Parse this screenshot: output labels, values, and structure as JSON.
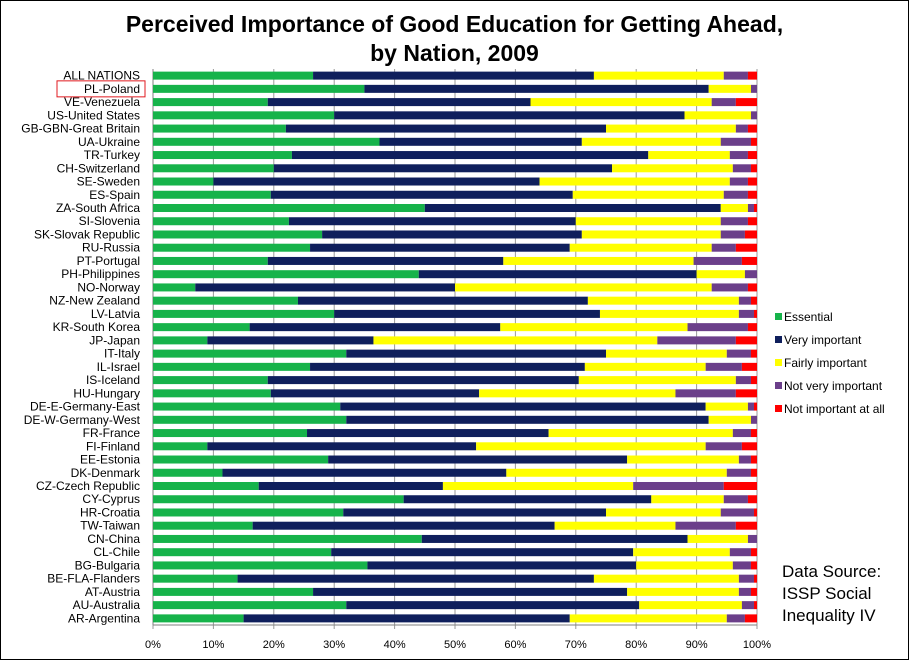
{
  "chart_data": {
    "type": "bar",
    "orientation": "horizontal",
    "stacked": "percent",
    "title": "Perceived Importance of Good Education for Getting Ahead,",
    "title_line2": "by Nation, 2009",
    "source_lines": [
      "Data Source:",
      "ISSP Social",
      "Inequality IV"
    ],
    "x_ticks": [
      "0%",
      "10%",
      "20%",
      "30%",
      "40%",
      "50%",
      "60%",
      "70%",
      "80%",
      "90%",
      "100%"
    ],
    "xlim": [
      0,
      100
    ],
    "legend_position": "right",
    "highlighted_category": "PL-Poland",
    "colors": [
      "#16b34a",
      "#0f1f5c",
      "#ffff00",
      "#6b3f8a",
      "#ff0000"
    ],
    "series_names": [
      "Essential",
      "Very important",
      "Fairly important",
      "Not very important",
      "Not important at all"
    ],
    "categories": [
      "ALL NATIONS",
      "PL-Poland",
      "VE-Venezuela",
      "US-United States",
      "GB-GBN-Great Britain",
      "UA-Ukraine",
      "TR-Turkey",
      "CH-Switzerland",
      "SE-Sweden",
      "ES-Spain",
      "ZA-South Africa",
      "SI-Slovenia",
      "SK-Slovak Republic",
      "RU-Russia",
      "PT-Portugal",
      "PH-Philippines",
      "NO-Norway",
      "NZ-New Zealand",
      "LV-Latvia",
      "KR-South Korea",
      "JP-Japan",
      "IT-Italy",
      "IL-Israel",
      "IS-Iceland",
      "HU-Hungary",
      "DE-E-Germany-East",
      "DE-W-Germany-West",
      "FR-France",
      "FI-Finland",
      "EE-Estonia",
      "DK-Denmark",
      "CZ-Czech Republic",
      "CY-Cyprus",
      "HR-Croatia",
      "TW-Taiwan",
      "CN-China",
      "CL-Chile",
      "BG-Bulgaria",
      "BE-FLA-Flanders",
      "AT-Austria",
      "AU-Australia",
      "AR-Argentina"
    ],
    "series": [
      {
        "name": "Essential",
        "values": [
          26.5,
          35,
          19,
          30,
          22,
          37.5,
          23,
          20,
          10,
          19.5,
          45,
          22.5,
          28,
          26,
          19,
          44,
          7,
          24,
          30,
          16,
          9,
          32,
          26,
          19,
          19.5,
          31,
          32,
          25.5,
          9,
          29,
          11.5,
          17.5,
          41.5,
          31.5,
          16.5,
          44.5,
          29.5,
          35.5,
          14,
          26.5,
          32,
          15
        ]
      },
      {
        "name": "Very important",
        "values": [
          46.5,
          57,
          43.5,
          58,
          53,
          33.5,
          59,
          56,
          54,
          50,
          49,
          47.5,
          43,
          43,
          39,
          46,
          43,
          48,
          44,
          41.5,
          27.5,
          43,
          45.5,
          51.5,
          34.5,
          60.5,
          60,
          40,
          44.5,
          49.5,
          47,
          30.5,
          41,
          43.5,
          50,
          44,
          50,
          44.5,
          59,
          52,
          48.5,
          54
        ]
      },
      {
        "name": "Fairly important",
        "values": [
          21.5,
          7,
          30,
          11,
          21.5,
          23,
          13.5,
          20,
          31.5,
          25,
          4.5,
          24,
          23,
          23.5,
          31.5,
          8,
          42.5,
          25,
          23,
          31,
          47,
          20,
          20,
          26,
          32.5,
          7,
          7,
          30.5,
          38,
          18.5,
          36.5,
          31.5,
          12,
          19,
          20,
          10,
          16,
          16,
          24,
          18.5,
          17,
          26
        ]
      },
      {
        "name": "Not very important",
        "values": [
          4,
          1,
          4,
          1,
          2,
          5,
          3,
          3,
          3,
          4,
          1,
          4.5,
          4,
          4,
          8,
          2,
          6,
          2,
          2.5,
          10,
          13,
          4,
          6,
          2.5,
          10,
          1,
          1,
          3,
          6,
          2,
          4,
          15,
          4,
          5.5,
          10,
          1.5,
          3.5,
          3,
          2.5,
          2,
          2,
          3
        ]
      },
      {
        "name": "Not important at all",
        "values": [
          1.5,
          0,
          3.5,
          0,
          1.5,
          1,
          1.5,
          1,
          1.5,
          1.5,
          0.5,
          1.5,
          2,
          3.5,
          2.5,
          0,
          1.5,
          1,
          0.5,
          1.5,
          3.5,
          1,
          2.5,
          1,
          3.5,
          0.5,
          0,
          1,
          2.5,
          1,
          1,
          5.5,
          1.5,
          0.5,
          3.5,
          0,
          1,
          1,
          0.5,
          1,
          0.5,
          2
        ]
      }
    ]
  }
}
